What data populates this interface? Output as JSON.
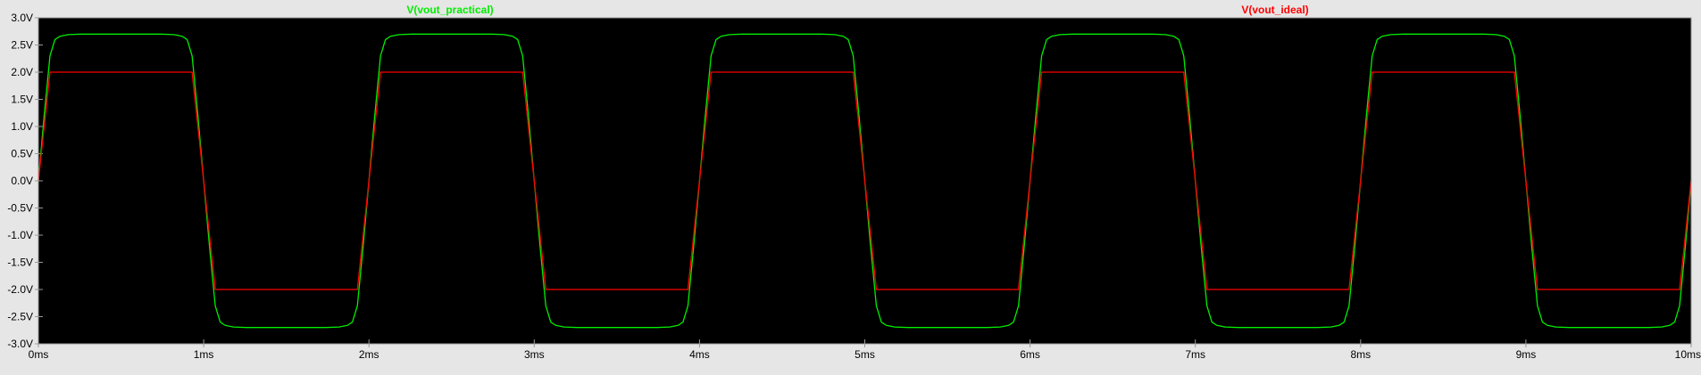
{
  "colors": {
    "background": "#e6e6e6",
    "plot_background": "#000000",
    "grid": "#999999",
    "tick_label": "#000000",
    "practical": "#00ee00",
    "ideal": "#ff0000"
  },
  "chart_data": {
    "type": "line",
    "title": "",
    "xlabel": "",
    "ylabel": "",
    "x_unit": "ms",
    "y_unit": "V",
    "xlim": [
      0,
      10
    ],
    "ylim": [
      -3.0,
      3.0
    ],
    "x_ticks": [
      0,
      1,
      2,
      3,
      4,
      5,
      6,
      7,
      8,
      9,
      10
    ],
    "x_tick_labels": [
      "0ms",
      "1ms",
      "2ms",
      "3ms",
      "4ms",
      "5ms",
      "6ms",
      "7ms",
      "8ms",
      "9ms",
      "10ms"
    ],
    "y_ticks": [
      3.0,
      2.5,
      2.0,
      1.5,
      1.0,
      0.5,
      0.0,
      -0.5,
      -1.0,
      -1.5,
      -2.0,
      -2.5,
      -3.0
    ],
    "y_tick_labels": [
      "3.0V",
      "2.5V",
      "2.0V",
      "1.5V",
      "1.0V",
      "0.5V",
      "0.0V",
      "-0.5V",
      "-1.0V",
      "-1.5V",
      "-2.0V",
      "-2.5V",
      "-3.0V"
    ],
    "grid": false,
    "legend_placement": "top",
    "series": [
      {
        "name": "V(vout_practical)",
        "color": "#00ee00",
        "x": [
          0,
          0.035,
          0.07,
          0.1,
          0.13,
          0.18,
          0.26,
          0.5,
          0.74,
          0.82,
          0.87,
          0.9,
          0.93,
          0.965,
          1.0,
          1.035,
          1.07,
          1.1,
          1.13,
          1.18,
          1.26,
          1.5,
          1.74,
          1.82,
          1.87,
          1.9,
          1.93,
          1.965,
          2.0,
          2.035,
          2.07,
          2.1,
          2.13,
          2.18,
          2.26,
          2.5,
          2.74,
          2.82,
          2.87,
          2.9,
          2.93,
          2.965,
          3.0,
          3.035,
          3.07,
          3.1,
          3.13,
          3.18,
          3.26,
          3.5,
          3.74,
          3.82,
          3.87,
          3.9,
          3.93,
          3.965,
          4.0,
          4.035,
          4.07,
          4.1,
          4.13,
          4.18,
          4.26,
          4.5,
          4.74,
          4.82,
          4.87,
          4.9,
          4.93,
          4.965,
          5.0,
          5.035,
          5.07,
          5.1,
          5.13,
          5.18,
          5.26,
          5.5,
          5.74,
          5.82,
          5.87,
          5.9,
          5.93,
          5.965,
          6.0,
          6.035,
          6.07,
          6.1,
          6.13,
          6.18,
          6.26,
          6.5,
          6.74,
          6.82,
          6.87,
          6.9,
          6.93,
          6.965,
          7.0,
          7.035,
          7.07,
          7.1,
          7.13,
          7.18,
          7.26,
          7.5,
          7.74,
          7.82,
          7.87,
          7.9,
          7.93,
          7.965,
          8.0,
          8.035,
          8.07,
          8.1,
          8.13,
          8.18,
          8.26,
          8.5,
          8.74,
          8.82,
          8.87,
          8.9,
          8.93,
          8.965,
          9.0,
          9.035,
          9.07,
          9.1,
          9.13,
          9.18,
          9.26,
          9.5,
          9.74,
          9.82,
          9.87,
          9.9,
          9.93,
          9.965,
          10.0
        ],
        "y": [
          0.0,
          1.2,
          2.3,
          2.6,
          2.66,
          2.69,
          2.7,
          2.7,
          2.7,
          2.69,
          2.66,
          2.6,
          2.3,
          1.2,
          0.0,
          -1.2,
          -2.3,
          -2.6,
          -2.66,
          -2.69,
          -2.7,
          -2.7,
          -2.7,
          -2.69,
          -2.66,
          -2.6,
          -2.3,
          -1.2,
          0.0,
          1.2,
          2.3,
          2.6,
          2.66,
          2.69,
          2.7,
          2.7,
          2.7,
          2.69,
          2.66,
          2.6,
          2.3,
          1.2,
          0.0,
          -1.2,
          -2.3,
          -2.6,
          -2.66,
          -2.69,
          -2.7,
          -2.7,
          -2.7,
          -2.69,
          -2.66,
          -2.6,
          -2.3,
          -1.2,
          0.0,
          1.2,
          2.3,
          2.6,
          2.66,
          2.69,
          2.7,
          2.7,
          2.7,
          2.69,
          2.66,
          2.6,
          2.3,
          1.2,
          0.0,
          -1.2,
          -2.3,
          -2.6,
          -2.66,
          -2.69,
          -2.7,
          -2.7,
          -2.7,
          -2.69,
          -2.66,
          -2.6,
          -2.3,
          -1.2,
          0.0,
          1.2,
          2.3,
          2.6,
          2.66,
          2.69,
          2.7,
          2.7,
          2.7,
          2.69,
          2.66,
          2.6,
          2.3,
          1.2,
          0.0,
          -1.2,
          -2.3,
          -2.6,
          -2.66,
          -2.69,
          -2.7,
          -2.7,
          -2.7,
          -2.69,
          -2.66,
          -2.6,
          -2.3,
          -1.2,
          0.0,
          1.2,
          2.3,
          2.6,
          2.66,
          2.69,
          2.7,
          2.7,
          2.7,
          2.69,
          2.66,
          2.6,
          2.3,
          1.2,
          0.0,
          -1.2,
          -2.3,
          -2.6,
          -2.66,
          -2.69,
          -2.7,
          -2.7,
          -2.7,
          -2.69,
          -2.66,
          -2.6,
          -2.3,
          -1.2,
          0.0
        ]
      },
      {
        "name": "V(vout_ideal)",
        "color": "#ff0000",
        "x": [
          0,
          0.07,
          0.93,
          1.07,
          1.93,
          2.07,
          2.93,
          3.07,
          3.93,
          4.07,
          4.93,
          5.07,
          5.93,
          6.07,
          6.93,
          7.07,
          7.93,
          8.07,
          8.93,
          9.07,
          9.93,
          10.0
        ],
        "y": [
          0.0,
          2.0,
          2.0,
          -2.0,
          -2.0,
          2.0,
          2.0,
          -2.0,
          -2.0,
          2.0,
          2.0,
          -2.0,
          -2.0,
          2.0,
          2.0,
          -2.0,
          -2.0,
          2.0,
          2.0,
          -2.0,
          -2.0,
          0.0
        ]
      }
    ]
  }
}
